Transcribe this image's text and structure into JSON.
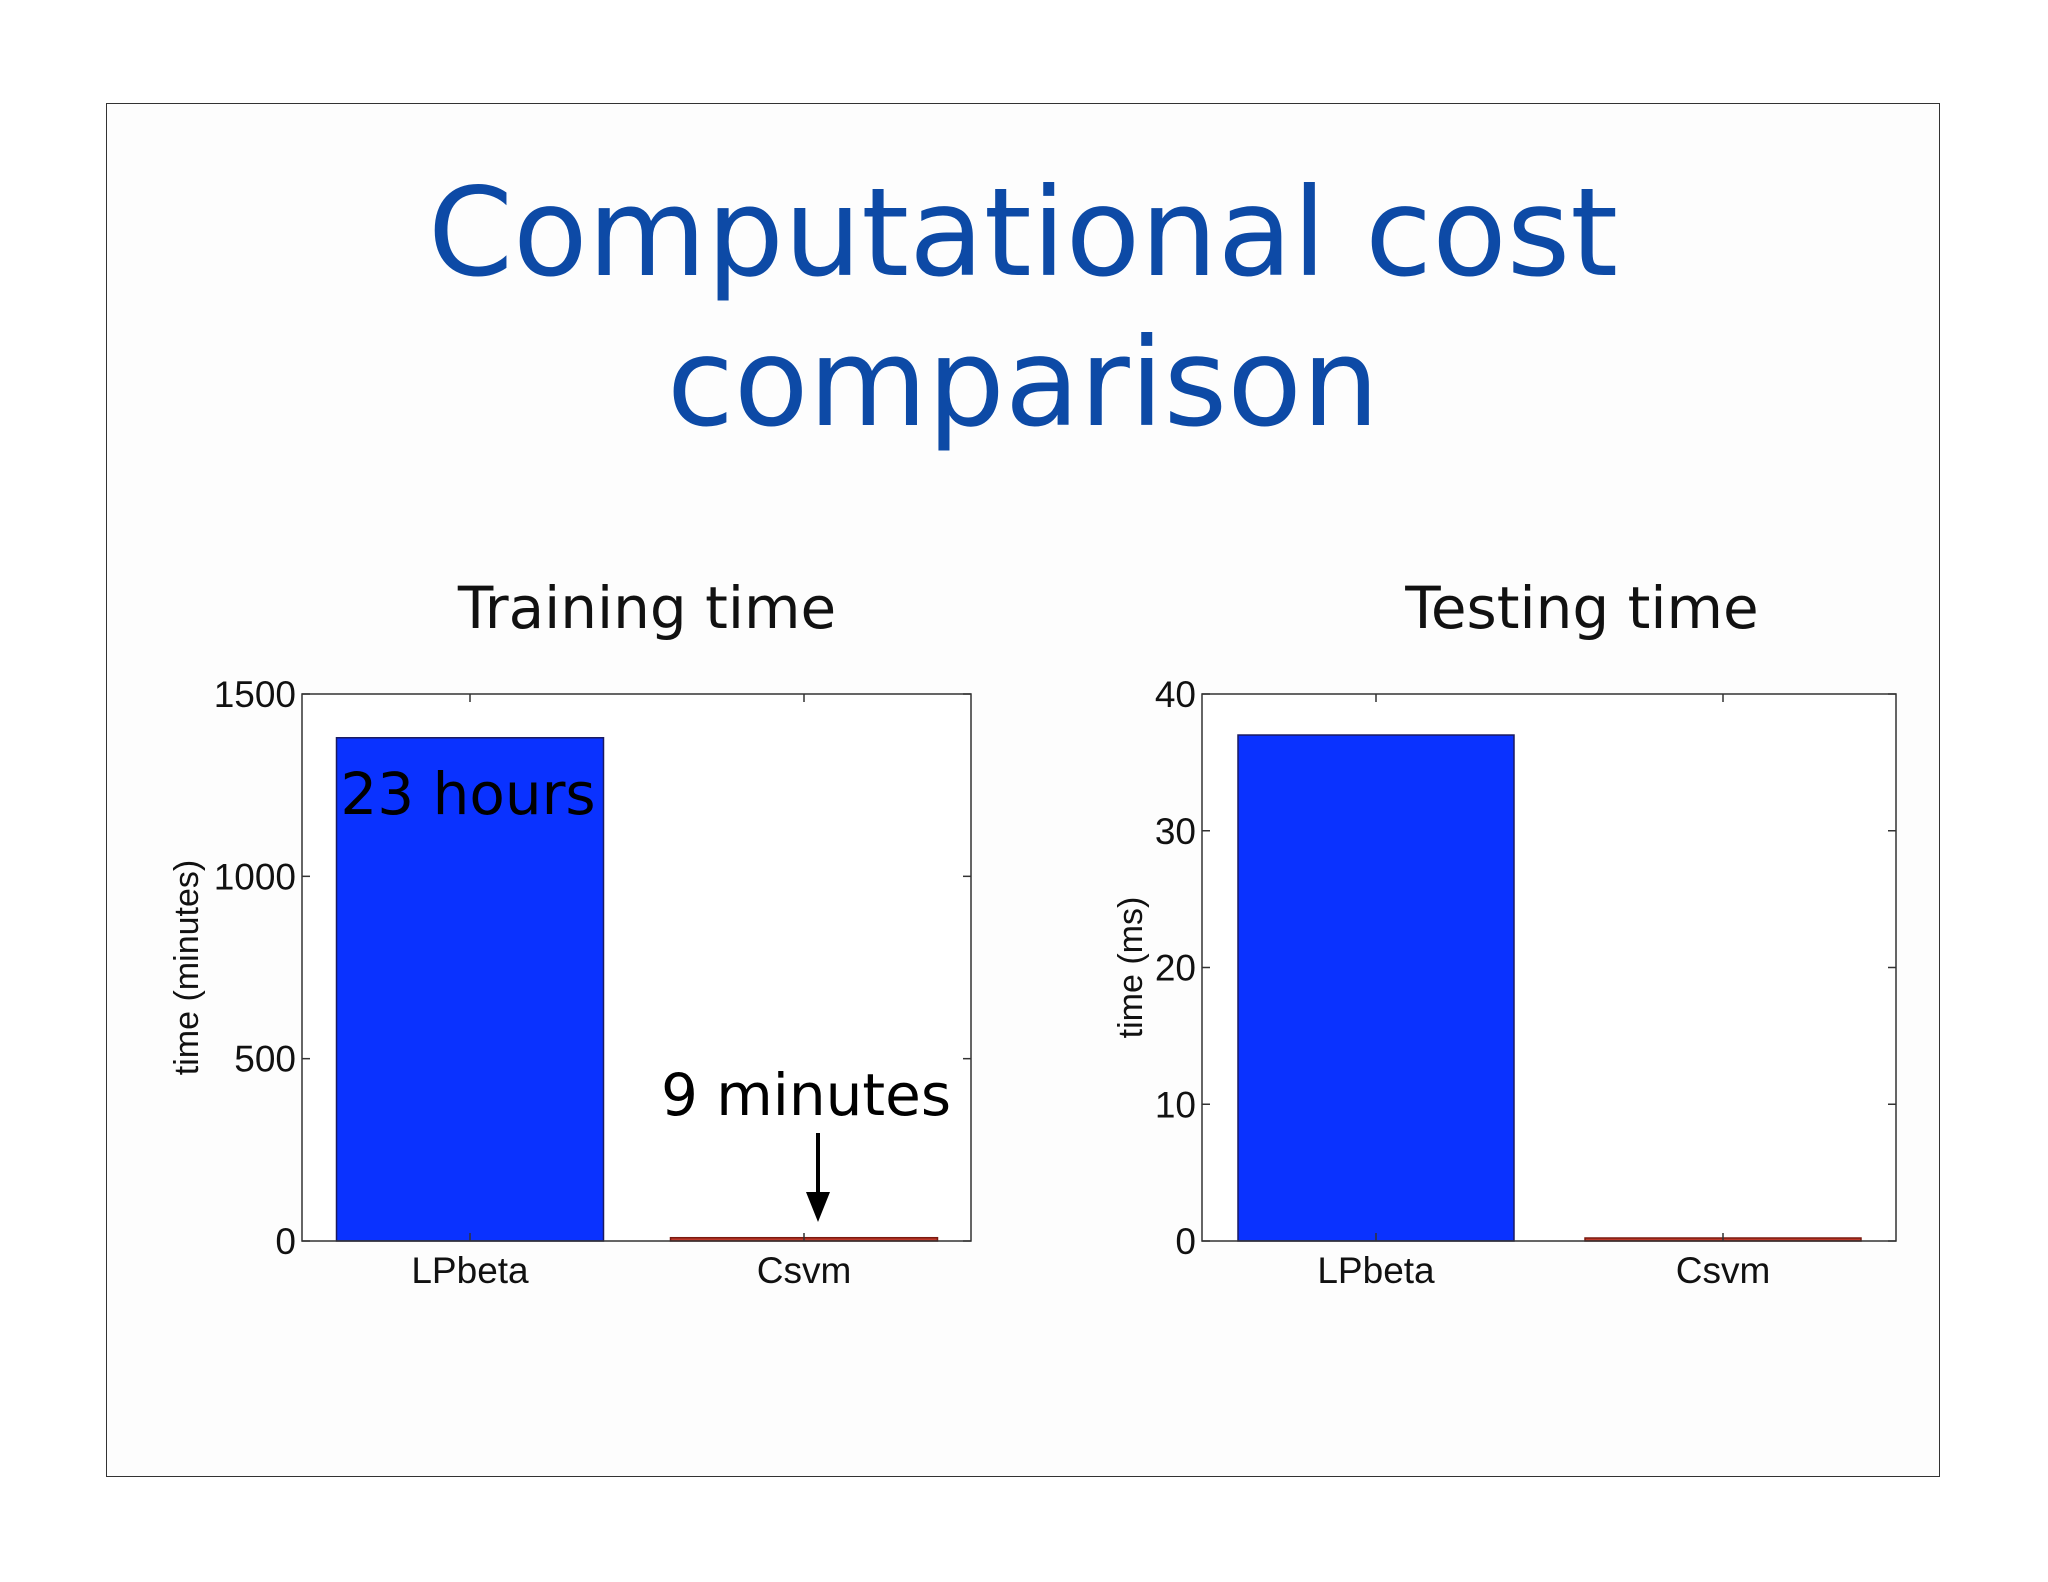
{
  "slide": {
    "title_line1": "Computational cost",
    "title_line2": "comparison",
    "title_color": "#0d4aa6"
  },
  "chart_data": [
    {
      "type": "bar",
      "title": "Training time",
      "categories": [
        "LPbeta",
        "Csvm"
      ],
      "values": [
        1380,
        9
      ],
      "colors": [
        "#0a32ff",
        "#c0392b"
      ],
      "xlabel": "",
      "ylabel": "time (minutes)",
      "ylim": [
        0,
        1500
      ],
      "yticks": [
        0,
        500,
        1000,
        1500
      ],
      "grid": false,
      "annotations": [
        {
          "text": "23 hours",
          "target": "LPbeta",
          "placement": "inside-top"
        },
        {
          "text": "9 minutes",
          "target": "Csvm",
          "placement": "above-with-arrow"
        }
      ]
    },
    {
      "type": "bar",
      "title": "Testing time",
      "categories": [
        "LPbeta",
        "Csvm"
      ],
      "values": [
        37,
        0.2
      ],
      "colors": [
        "#0a32ff",
        "#c0392b"
      ],
      "xlabel": "",
      "ylabel": "time (ms)",
      "ylim": [
        0,
        40
      ],
      "yticks": [
        0,
        10,
        20,
        30,
        40
      ],
      "grid": false,
      "annotations": []
    }
  ]
}
